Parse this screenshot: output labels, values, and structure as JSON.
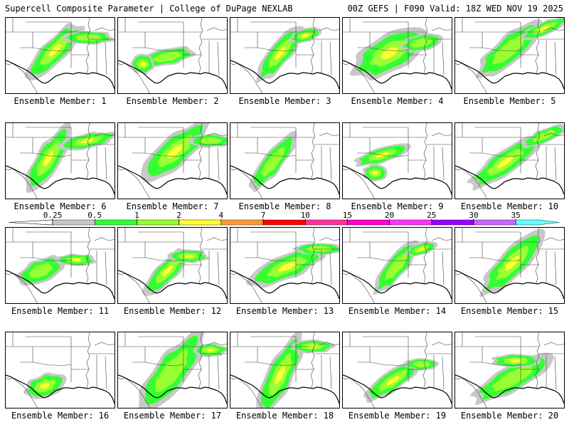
{
  "header": {
    "left": "Supercell Composite Parameter | College of DuPage NEXLAB",
    "right": "00Z GEFS | F090 Valid: 18Z WED NOV 19 2025"
  },
  "colorbar": {
    "ticks": [
      "0.25",
      "0.5",
      "1",
      "2",
      "4",
      "7",
      "10",
      "15",
      "20",
      "25",
      "30",
      "35"
    ],
    "colors": [
      "#c8c8c8",
      "#33ff33",
      "#99ff33",
      "#ffff33",
      "#ff9933",
      "#ff0000",
      "#ff3399",
      "#ff00cc",
      "#ff33ff",
      "#9900ff",
      "#cc66ff",
      "#66ffff"
    ]
  },
  "members": [
    {
      "label": "Ensemble Member: 1"
    },
    {
      "label": "Ensemble Member: 2"
    },
    {
      "label": "Ensemble Member: 3"
    },
    {
      "label": "Ensemble Member: 4"
    },
    {
      "label": "Ensemble Member: 5"
    },
    {
      "label": "Ensemble Member: 6"
    },
    {
      "label": "Ensemble Member: 7"
    },
    {
      "label": "Ensemble Member: 8"
    },
    {
      "label": "Ensemble Member: 9"
    },
    {
      "label": "Ensemble Member: 10"
    },
    {
      "label": "Ensemble Member: 11"
    },
    {
      "label": "Ensemble Member: 12"
    },
    {
      "label": "Ensemble Member: 13"
    },
    {
      "label": "Ensemble Member: 14"
    },
    {
      "label": "Ensemble Member: 15"
    },
    {
      "label": "Ensemble Member: 16"
    },
    {
      "label": "Ensemble Member: 17"
    },
    {
      "label": "Ensemble Member: 18"
    },
    {
      "label": "Ensemble Member: 19"
    },
    {
      "label": "Ensemble Member: 20"
    }
  ]
}
